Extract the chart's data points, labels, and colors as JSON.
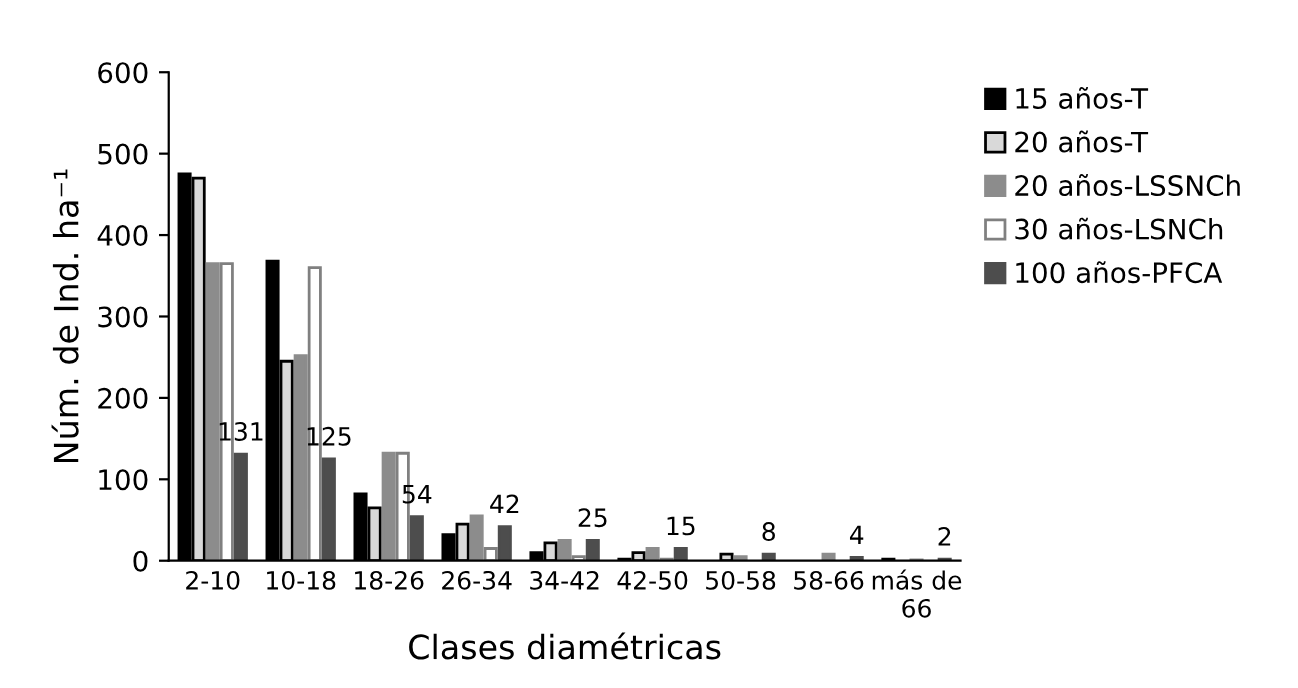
{
  "chart_data": {
    "type": "bar",
    "xlabel": "Clases diamétricas",
    "ylabel": "Núm. de Ind. ha⁻¹",
    "categories": [
      "2-10",
      "10-18",
      "18-26",
      "26-34",
      "34-42",
      "42-50",
      "50-58",
      "58-66",
      "más de\n66"
    ],
    "ylim": [
      0,
      600
    ],
    "yticks": [
      0,
      100,
      200,
      300,
      400,
      500,
      600
    ],
    "grid": false,
    "legend": "top right",
    "series": [
      {
        "name": "15 años-T",
        "color": "#000000",
        "values": [
          475,
          368,
          82,
          32,
          10,
          2,
          0,
          0,
          2
        ]
      },
      {
        "name": "20 años-T",
        "color": "#d9d9d9",
        "values": [
          470,
          245,
          65,
          45,
          22,
          10,
          8,
          0,
          null
        ]
      },
      {
        "name": "20 años-LSSNCh",
        "color": "#8c8c8c",
        "values": [
          365,
          252,
          132,
          55,
          25,
          15,
          5,
          8,
          1
        ]
      },
      {
        "name": "30 años-LSNCh",
        "color": "#ffffff",
        "values": [
          365,
          360,
          132,
          15,
          5,
          2,
          0,
          0,
          0
        ]
      },
      {
        "name": "100 años-PFCA",
        "color": "#4d4d4d",
        "values": [
          131,
          125,
          54,
          42,
          25,
          15,
          8,
          4,
          2
        ],
        "value_labels": [
          "131",
          "125",
          "54",
          "42",
          "25",
          "15",
          "8",
          "4",
          "2"
        ]
      }
    ]
  }
}
